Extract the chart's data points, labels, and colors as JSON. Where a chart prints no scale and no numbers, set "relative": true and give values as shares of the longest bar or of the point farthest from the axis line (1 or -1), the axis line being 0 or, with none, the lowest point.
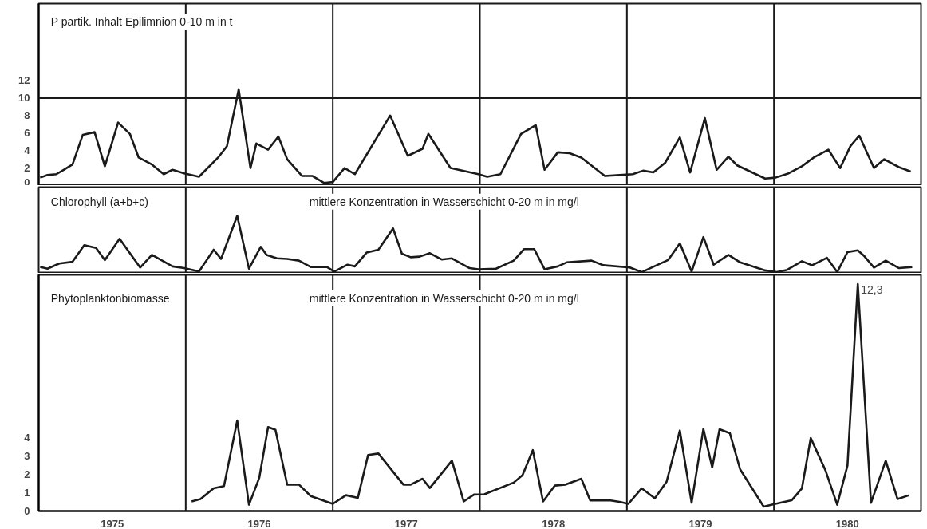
{
  "chart_data": [
    {
      "type": "line",
      "title": "P partik. Inhalt Epilimnion 0-10 m in t",
      "color": "#1a1a1a",
      "x": [
        1975.01,
        1975.06,
        1975.12,
        1975.17,
        1975.23,
        1975.3,
        1975.38,
        1975.45,
        1975.54,
        1975.62,
        1975.68,
        1975.77,
        1975.85,
        1975.91,
        1975.99,
        1976.09,
        1976.22,
        1976.28,
        1976.36,
        1976.44,
        1976.48,
        1976.56,
        1976.63,
        1976.69,
        1976.79,
        1976.86,
        1976.94,
        1977.0,
        1977.08,
        1977.15,
        1977.39,
        1977.51,
        1977.61,
        1977.65,
        1977.8,
        1977.99,
        1978.05,
        1978.14,
        1978.28,
        1978.38,
        1978.44,
        1978.53,
        1978.61,
        1978.69,
        1978.85,
        1978.95,
        1979.04,
        1979.11,
        1979.18,
        1979.26,
        1979.36,
        1979.43,
        1979.53,
        1979.61,
        1979.69,
        1979.75,
        1979.94,
        1980.01,
        1980.1,
        1980.19,
        1980.27,
        1980.37,
        1980.45,
        1980.52,
        1980.58,
        1980.68,
        1980.75,
        1980.85,
        1980.93
      ],
      "values": [
        0.9,
        1.2,
        1.3,
        1.8,
        2.4,
        5.8,
        6.1,
        2.2,
        7.2,
        5.9,
        3.2,
        2.4,
        1.3,
        1.8,
        1.4,
        1.0,
        3.2,
        4.5,
        11.0,
        2.0,
        4.8,
        4.1,
        5.6,
        3.0,
        1.1,
        1.1,
        0.3,
        0.4,
        2.0,
        1.3,
        8.0,
        3.4,
        4.2,
        5.9,
        2.0,
        1.3,
        1.0,
        1.3,
        5.9,
        6.9,
        1.8,
        3.8,
        3.7,
        3.2,
        1.1,
        1.2,
        1.3,
        1.7,
        1.5,
        2.6,
        5.5,
        1.5,
        7.7,
        1.8,
        3.3,
        2.3,
        0.8,
        0.9,
        1.4,
        2.2,
        3.2,
        4.1,
        2.0,
        4.5,
        5.7,
        2.0,
        3.0,
        2.1,
        1.6
      ],
      "xlim": [
        1975,
        1981
      ],
      "ylim": [
        0,
        20.8
      ],
      "yticks": [
        0,
        2,
        4,
        6,
        8,
        10,
        12
      ],
      "tick_labels": "y",
      "grid": false,
      "ref_lines": [
        {
          "axis": "y",
          "value": 10
        },
        {
          "axis": "x",
          "value": 1976
        },
        {
          "axis": "x",
          "value": 1977
        },
        {
          "axis": "x",
          "value": 1978
        },
        {
          "axis": "x",
          "value": 1979
        },
        {
          "axis": "x",
          "value": 1980
        }
      ]
    },
    {
      "type": "line",
      "title": "Chlorophyll (a+b+c)",
      "subtitle": "mittlere Konzentration in Wasserschicht 0-20 m in mg/l",
      "color": "#1a1a1a",
      "relative": true,
      "x": [
        1975.01,
        1975.06,
        1975.14,
        1975.23,
        1975.31,
        1975.39,
        1975.45,
        1975.55,
        1975.69,
        1975.77,
        1975.91,
        1975.99,
        1976.09,
        1976.19,
        1976.24,
        1976.35,
        1976.43,
        1976.51,
        1976.55,
        1976.62,
        1976.69,
        1976.77,
        1976.85,
        1976.96,
        1977.01,
        1977.1,
        1977.15,
        1977.23,
        1977.31,
        1977.41,
        1977.47,
        1977.53,
        1977.59,
        1977.66,
        1977.74,
        1977.81,
        1977.93,
        1977.99,
        1978.11,
        1978.23,
        1978.3,
        1978.37,
        1978.44,
        1978.53,
        1978.59,
        1978.76,
        1978.84,
        1979.02,
        1979.1,
        1979.28,
        1979.36,
        1979.44,
        1979.52,
        1979.59,
        1979.69,
        1979.77,
        1979.94,
        1980.02,
        1980.09,
        1980.19,
        1980.26,
        1980.36,
        1980.43,
        1980.5,
        1980.57,
        1980.61,
        1980.68,
        1980.76,
        1980.85,
        1980.94
      ],
      "values": [
        0.11,
        0.08,
        0.17,
        0.2,
        0.49,
        0.44,
        0.23,
        0.6,
        0.1,
        0.32,
        0.12,
        0.09,
        0.03,
        0.41,
        0.25,
        1.0,
        0.08,
        0.46,
        0.32,
        0.26,
        0.25,
        0.22,
        0.11,
        0.11,
        0.03,
        0.15,
        0.12,
        0.36,
        0.41,
        0.78,
        0.34,
        0.28,
        0.29,
        0.35,
        0.24,
        0.26,
        0.09,
        0.07,
        0.08,
        0.22,
        0.42,
        0.42,
        0.07,
        0.12,
        0.19,
        0.22,
        0.14,
        0.1,
        0.02,
        0.23,
        0.52,
        0.03,
        0.63,
        0.15,
        0.32,
        0.19,
        0.05,
        0.02,
        0.06,
        0.21,
        0.14,
        0.27,
        0.02,
        0.37,
        0.4,
        0.31,
        0.1,
        0.22,
        0.09,
        0.11
      ],
      "xlim": [
        1975,
        1981
      ],
      "tick_labels": false,
      "grid": false,
      "ref_lines": [
        {
          "axis": "x",
          "value": 1976
        },
        {
          "axis": "x",
          "value": 1977
        },
        {
          "axis": "x",
          "value": 1978
        },
        {
          "axis": "x",
          "value": 1979
        },
        {
          "axis": "x",
          "value": 1980
        }
      ]
    },
    {
      "type": "line",
      "title": "Phytoplanktonbiomasse",
      "subtitle": "mittlere Konzentration in Wasserschicht 0-20 m in mg/l",
      "color": "#1a1a1a",
      "x": [
        1976.04,
        1976.1,
        1976.19,
        1976.26,
        1976.35,
        1976.43,
        1976.5,
        1976.56,
        1976.61,
        1976.69,
        1976.77,
        1976.85,
        1977.0,
        1977.09,
        1977.17,
        1977.24,
        1977.31,
        1977.48,
        1977.53,
        1977.61,
        1977.66,
        1977.81,
        1977.89,
        1977.96,
        1978.03,
        1978.23,
        1978.29,
        1978.36,
        1978.43,
        1978.51,
        1978.58,
        1978.69,
        1978.75,
        1978.88,
        1978.95,
        1979.01,
        1979.1,
        1979.19,
        1979.27,
        1979.36,
        1979.44,
        1979.52,
        1979.58,
        1979.63,
        1979.7,
        1979.77,
        1979.93,
        1980.01,
        1980.12,
        1980.19,
        1980.25,
        1980.35,
        1980.43,
        1980.5,
        1980.57,
        1980.66,
        1980.76,
        1980.84,
        1980.92
      ],
      "values": [
        0.52,
        0.65,
        1.23,
        1.35,
        4.9,
        0.34,
        1.8,
        4.55,
        4.4,
        1.43,
        1.43,
        0.81,
        0.39,
        0.86,
        0.71,
        3.04,
        3.12,
        1.43,
        1.43,
        1.75,
        1.25,
        2.73,
        0.52,
        0.89,
        0.91,
        1.54,
        1.95,
        3.3,
        0.52,
        1.38,
        1.43,
        1.75,
        0.58,
        0.58,
        0.5,
        0.39,
        1.23,
        0.69,
        1.59,
        4.36,
        0.45,
        4.45,
        2.37,
        4.43,
        4.22,
        2.26,
        0.24,
        0.39,
        0.58,
        1.23,
        3.95,
        2.21,
        0.34,
        2.47,
        12.3,
        0.45,
        2.73,
        0.65,
        0.86
      ],
      "value_labels": [
        null,
        null,
        null,
        null,
        null,
        null,
        null,
        null,
        null,
        null,
        null,
        null,
        null,
        null,
        null,
        null,
        null,
        null,
        null,
        null,
        null,
        null,
        null,
        null,
        null,
        null,
        null,
        null,
        null,
        null,
        null,
        null,
        null,
        null,
        null,
        null,
        null,
        null,
        null,
        null,
        null,
        null,
        null,
        null,
        null,
        null,
        null,
        null,
        null,
        null,
        null,
        null,
        null,
        null,
        "12,3",
        null,
        null,
        null,
        null
      ],
      "xlim": [
        1975,
        1981
      ],
      "ylim": [
        0,
        12.8
      ],
      "yticks": [
        0,
        1,
        2,
        3,
        4
      ],
      "grid": false,
      "xticks": [
        {
          "value": 1975.5,
          "label": "1975"
        },
        {
          "value": 1976.5,
          "label": "1976"
        },
        {
          "value": 1977.5,
          "label": "1977"
        },
        {
          "value": 1978.5,
          "label": "1978"
        },
        {
          "value": 1979.5,
          "label": "1979"
        },
        {
          "value": 1980.5,
          "label": "1980"
        }
      ],
      "ref_lines": [
        {
          "axis": "x",
          "value": 1976
        },
        {
          "axis": "x",
          "value": 1977
        },
        {
          "axis": "x",
          "value": 1978
        },
        {
          "axis": "x",
          "value": 1979
        },
        {
          "axis": "x",
          "value": 1980
        }
      ]
    }
  ]
}
